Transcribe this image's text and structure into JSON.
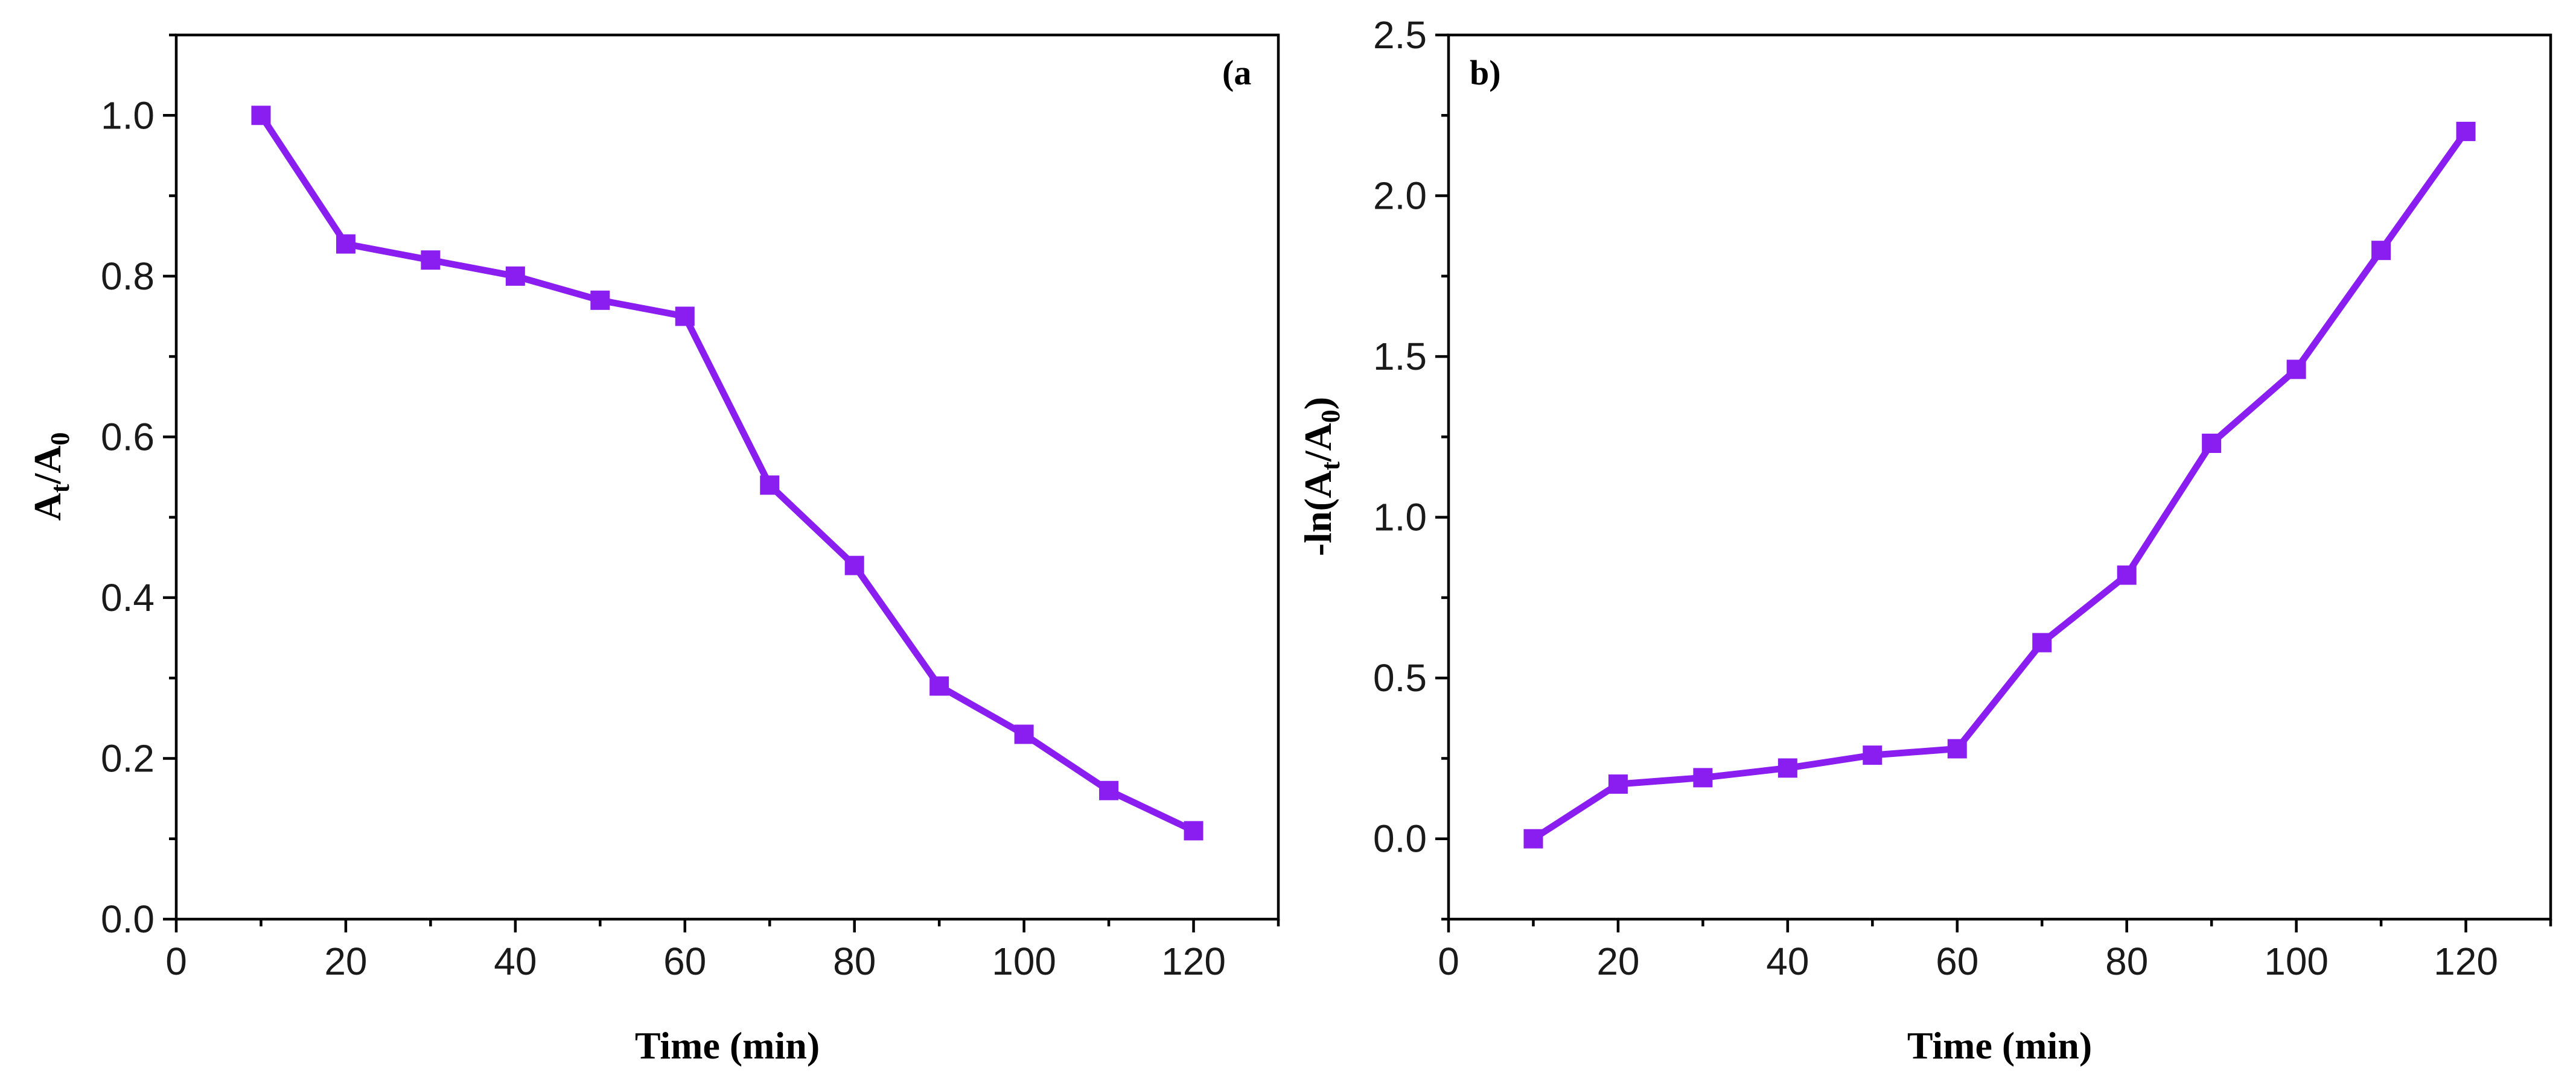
{
  "chart_data": [
    {
      "type": "line",
      "panel_label": "(a",
      "xlabel": "Time (min)",
      "ylabel": {
        "main": "A",
        "sub1": "t",
        "mid": "/A",
        "sub2": "0"
      },
      "xlim": [
        0,
        130
      ],
      "ylim": [
        0.0,
        1.1
      ],
      "xticks": [
        0,
        20,
        40,
        60,
        80,
        100,
        120
      ],
      "xtick_labels": [
        "0",
        "20",
        "40",
        "60",
        "80",
        "100",
        "120"
      ],
      "yticks": [
        0.0,
        0.2,
        0.4,
        0.6,
        0.8,
        1.0
      ],
      "ytick_labels": [
        "0.0",
        "0.2",
        "0.4",
        "0.6",
        "0.8",
        "1.0"
      ],
      "grid": false,
      "series": [
        {
          "name": "At/A0",
          "color": "#8a1ef0",
          "marker": "square",
          "x": [
            10,
            20,
            30,
            40,
            50,
            60,
            70,
            80,
            90,
            100,
            110,
            120
          ],
          "values": [
            1.0,
            0.84,
            0.82,
            0.8,
            0.77,
            0.75,
            0.54,
            0.44,
            0.29,
            0.23,
            0.16,
            0.11
          ]
        }
      ]
    },
    {
      "type": "line",
      "panel_label": "b)",
      "xlabel": "Time (min)",
      "ylabel": {
        "pre": "-ln(A",
        "sub1": "t",
        "mid": "/A",
        "sub2": "0",
        "post": ")"
      },
      "xlim": [
        0,
        130
      ],
      "ylim": [
        -0.25,
        2.5
      ],
      "xticks": [
        0,
        20,
        40,
        60,
        80,
        100,
        120
      ],
      "xtick_labels": [
        "0",
        "20",
        "40",
        "60",
        "80",
        "100",
        "120"
      ],
      "yticks": [
        0.0,
        0.5,
        1.0,
        1.5,
        2.0,
        2.5
      ],
      "ytick_labels": [
        "0.0",
        "0.5",
        "1.0",
        "1.5",
        "2.0",
        "2.5"
      ],
      "grid": false,
      "series": [
        {
          "name": "-ln(At/A0)",
          "color": "#8a1ef0",
          "marker": "square",
          "x": [
            10,
            20,
            30,
            40,
            50,
            60,
            70,
            80,
            90,
            100,
            110,
            120
          ],
          "values": [
            0.0,
            0.17,
            0.19,
            0.22,
            0.26,
            0.28,
            0.61,
            0.82,
            1.23,
            1.46,
            1.83,
            2.2
          ]
        }
      ]
    }
  ]
}
